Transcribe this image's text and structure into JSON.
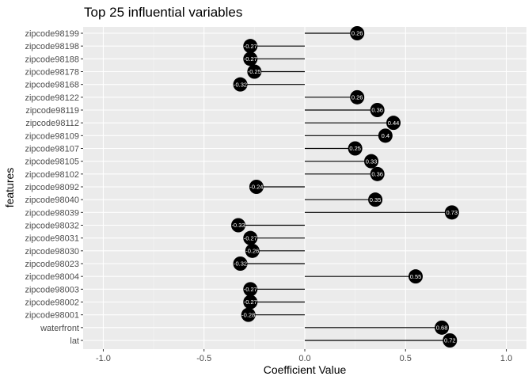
{
  "chart_data": {
    "type": "lollipop",
    "title": "Top 25 influential variables",
    "xlabel": "Coefficient Value",
    "ylabel": "features",
    "xlim": [
      -1.1,
      1.1
    ],
    "x_ticks": [
      -1.0,
      -0.5,
      0.0,
      0.5,
      1.0
    ],
    "x_tick_labels": [
      "-1.0",
      "-0.5",
      "0.0",
      "0.5",
      "1.0"
    ],
    "grid": true,
    "features": [
      "zipcode98199",
      "zipcode98198",
      "zipcode98188",
      "zipcode98178",
      "zipcode98168",
      "zipcode98122",
      "zipcode98119",
      "zipcode98112",
      "zipcode98109",
      "zipcode98107",
      "zipcode98105",
      "zipcode98102",
      "zipcode98092",
      "zipcode98040",
      "zipcode98039",
      "zipcode98032",
      "zipcode98031",
      "zipcode98030",
      "zipcode98023",
      "zipcode98004",
      "zipcode98003",
      "zipcode98002",
      "zipcode98001",
      "waterfront",
      "lat"
    ],
    "values": [
      0.26,
      -0.27,
      -0.27,
      -0.25,
      -0.32,
      0.26,
      0.36,
      0.44,
      0.4,
      0.25,
      0.33,
      0.36,
      -0.24,
      0.35,
      0.73,
      -0.33,
      -0.27,
      -0.26,
      -0.32,
      0.55,
      -0.27,
      -0.27,
      -0.28,
      0.68,
      0.72
    ],
    "value_labels": [
      "0.26",
      "-0.27",
      "-0.27",
      "-0.25",
      "-0.32",
      "0.26",
      "0.36",
      "0.44",
      "0.4",
      "0.25",
      "0.33",
      "0.36",
      "-0.24",
      "0.35",
      "0.73",
      "-0.33",
      "-0.27",
      "-0.26",
      "-0.32",
      "0.55",
      "-0.27",
      "-0.27",
      "-0.28",
      "0.68",
      "0.72"
    ],
    "colors": {
      "panel_bg": "#ebebeb",
      "grid_major": "#ffffff",
      "grid_minor": "#f5f5f5",
      "point": "#000000",
      "point_label": "#ffffff",
      "text": "#1a1a1a",
      "tick_text": "#4d4d4d"
    }
  }
}
